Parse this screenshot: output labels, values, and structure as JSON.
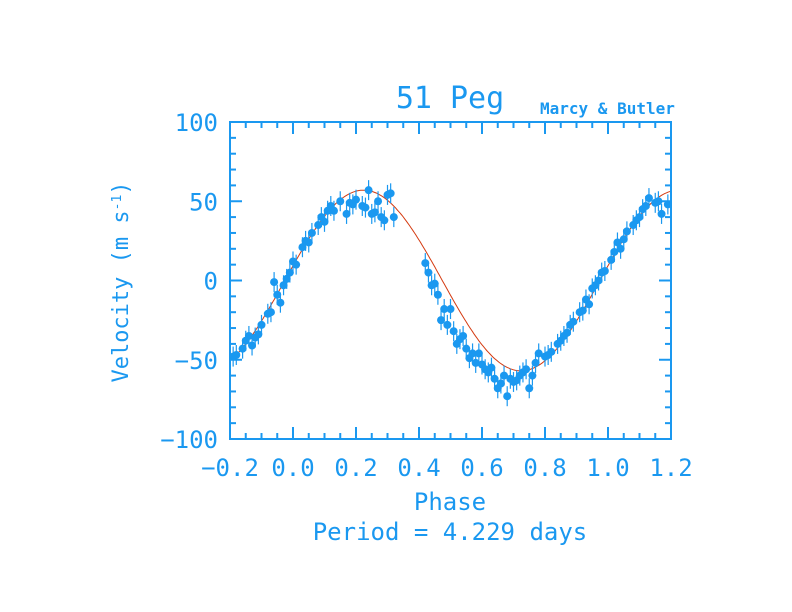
{
  "colors": {
    "axis": "#1a98f0",
    "points": "#1a98f0",
    "fit": "#d43a10",
    "background": "#ffffff"
  },
  "chart_data": {
    "type": "scatter",
    "title": "51 Peg",
    "credit": "Marcy & Butler",
    "xlabel": "Phase",
    "ylabel_main": "Velocity (m s",
    "ylabel_sup": "-1",
    "ylabel_close": ")",
    "footer": "Period = 4.229 days",
    "xlim": [
      -0.2,
      1.2
    ],
    "ylim": [
      -100,
      100
    ],
    "x_ticks": [
      -0.2,
      0.0,
      0.2,
      0.4,
      0.6,
      0.8,
      1.0,
      1.2
    ],
    "x_tick_labels": [
      "−0.2",
      "0.0",
      "0.2",
      "0.4",
      "0.6",
      "0.8",
      "1.0",
      "1.2"
    ],
    "y_ticks": [
      100,
      50,
      0,
      -50,
      -100
    ],
    "y_tick_labels": [
      "100",
      "50",
      "0",
      "−50",
      "−100"
    ],
    "fit_model": {
      "amplitude": 57,
      "phase_zero": 0.224,
      "period_phase": 1.0
    },
    "series": [
      {
        "points": [
          {
            "x": -0.19,
            "y": -48
          },
          {
            "x": -0.18,
            "y": -47
          },
          {
            "x": -0.16,
            "y": -43
          },
          {
            "x": -0.15,
            "y": -38
          },
          {
            "x": -0.14,
            "y": -35
          },
          {
            "x": -0.13,
            "y": -41
          },
          {
            "x": -0.12,
            "y": -36
          },
          {
            "x": -0.11,
            "y": -34
          },
          {
            "x": -0.1,
            "y": -28
          },
          {
            "x": -0.08,
            "y": -21
          },
          {
            "x": -0.07,
            "y": -20
          },
          {
            "x": -0.06,
            "y": -1
          },
          {
            "x": -0.05,
            "y": -9
          },
          {
            "x": -0.04,
            "y": -14
          },
          {
            "x": -0.03,
            "y": -3
          },
          {
            "x": -0.02,
            "y": 1
          },
          {
            "x": -0.01,
            "y": 5
          },
          {
            "x": 0.0,
            "y": 12
          },
          {
            "x": 0.01,
            "y": 10
          },
          {
            "x": 0.03,
            "y": 21
          },
          {
            "x": 0.04,
            "y": 25
          },
          {
            "x": 0.05,
            "y": 24
          },
          {
            "x": 0.06,
            "y": 30
          },
          {
            "x": 0.08,
            "y": 35
          },
          {
            "x": 0.09,
            "y": 40
          },
          {
            "x": 0.1,
            "y": 37
          },
          {
            "x": 0.11,
            "y": 44
          },
          {
            "x": 0.12,
            "y": 47
          },
          {
            "x": 0.13,
            "y": 44
          },
          {
            "x": 0.15,
            "y": 50
          },
          {
            "x": 0.17,
            "y": 42
          },
          {
            "x": 0.18,
            "y": 49
          },
          {
            "x": 0.19,
            "y": 48
          },
          {
            "x": 0.2,
            "y": 51
          },
          {
            "x": 0.22,
            "y": 47
          },
          {
            "x": 0.23,
            "y": 46
          },
          {
            "x": 0.24,
            "y": 57
          },
          {
            "x": 0.25,
            "y": 42
          },
          {
            "x": 0.26,
            "y": 43
          },
          {
            "x": 0.27,
            "y": 50
          },
          {
            "x": 0.28,
            "y": 40
          },
          {
            "x": 0.29,
            "y": 38
          },
          {
            "x": 0.3,
            "y": 54
          },
          {
            "x": 0.31,
            "y": 55
          },
          {
            "x": 0.32,
            "y": 40
          },
          {
            "x": 0.42,
            "y": 11
          },
          {
            "x": 0.43,
            "y": 5
          },
          {
            "x": 0.44,
            "y": -3
          },
          {
            "x": 0.45,
            "y": -2
          },
          {
            "x": 0.46,
            "y": -9
          },
          {
            "x": 0.47,
            "y": -25
          },
          {
            "x": 0.48,
            "y": -18
          },
          {
            "x": 0.49,
            "y": -28
          },
          {
            "x": 0.5,
            "y": -18
          },
          {
            "x": 0.51,
            "y": -32
          },
          {
            "x": 0.52,
            "y": -40
          },
          {
            "x": 0.53,
            "y": -37
          },
          {
            "x": 0.54,
            "y": -35
          },
          {
            "x": 0.55,
            "y": -43
          },
          {
            "x": 0.56,
            "y": -49
          },
          {
            "x": 0.57,
            "y": -46
          },
          {
            "x": 0.58,
            "y": -52
          },
          {
            "x": 0.59,
            "y": -46
          },
          {
            "x": 0.6,
            "y": -53
          },
          {
            "x": 0.61,
            "y": -56
          },
          {
            "x": 0.62,
            "y": -58
          },
          {
            "x": 0.63,
            "y": -55
          },
          {
            "x": 0.64,
            "y": -62
          },
          {
            "x": 0.65,
            "y": -68
          },
          {
            "x": 0.66,
            "y": -65
          },
          {
            "x": 0.67,
            "y": -60
          },
          {
            "x": 0.68,
            "y": -73
          },
          {
            "x": 0.69,
            "y": -62
          },
          {
            "x": 0.7,
            "y": -64
          },
          {
            "x": 0.71,
            "y": -63
          },
          {
            "x": 0.72,
            "y": -60
          },
          {
            "x": 0.73,
            "y": -58
          },
          {
            "x": 0.74,
            "y": -56
          },
          {
            "x": 0.75,
            "y": -68
          },
          {
            "x": 0.76,
            "y": -60
          },
          {
            "x": 0.77,
            "y": -52
          },
          {
            "x": 0.78,
            "y": -46
          },
          {
            "x": 0.8,
            "y": -48
          },
          {
            "x": 0.81,
            "y": -47
          },
          {
            "x": 0.82,
            "y": -45
          },
          {
            "x": 0.84,
            "y": -40
          },
          {
            "x": 0.85,
            "y": -38
          },
          {
            "x": 0.86,
            "y": -35
          },
          {
            "x": 0.87,
            "y": -33
          },
          {
            "x": 0.88,
            "y": -28
          },
          {
            "x": 0.89,
            "y": -26
          },
          {
            "x": 0.91,
            "y": -20
          },
          {
            "x": 0.92,
            "y": -19
          },
          {
            "x": 0.93,
            "y": -12
          },
          {
            "x": 0.94,
            "y": -15
          },
          {
            "x": 0.95,
            "y": -5
          },
          {
            "x": 0.96,
            "y": -3
          },
          {
            "x": 0.97,
            "y": 0
          },
          {
            "x": 0.98,
            "y": 5
          },
          {
            "x": 0.99,
            "y": 6
          },
          {
            "x": 1.01,
            "y": 13
          },
          {
            "x": 1.02,
            "y": 18
          },
          {
            "x": 1.03,
            "y": 24
          },
          {
            "x": 1.04,
            "y": 20
          },
          {
            "x": 1.05,
            "y": 26
          },
          {
            "x": 1.06,
            "y": 31
          },
          {
            "x": 1.08,
            "y": 35
          },
          {
            "x": 1.09,
            "y": 38
          },
          {
            "x": 1.1,
            "y": 40
          },
          {
            "x": 1.11,
            "y": 45
          },
          {
            "x": 1.12,
            "y": 47
          },
          {
            "x": 1.13,
            "y": 52
          },
          {
            "x": 1.15,
            "y": 49
          },
          {
            "x": 1.16,
            "y": 50
          },
          {
            "x": 1.17,
            "y": 42
          },
          {
            "x": 1.19,
            "y": 48
          }
        ]
      }
    ]
  }
}
